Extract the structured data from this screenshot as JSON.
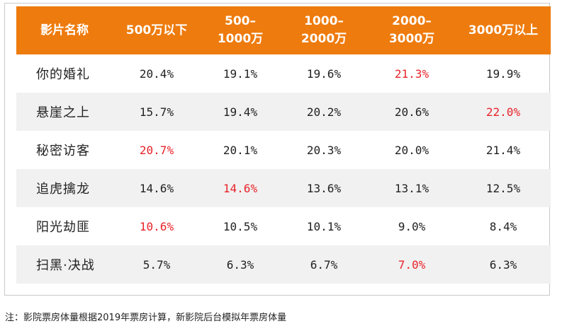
{
  "chart_data": {
    "type": "table",
    "columns": [
      "影片名称",
      "500万以下",
      "500–1000万",
      "1000–2000万",
      "2000–3000万",
      "3000万以上"
    ],
    "column_lines": [
      [
        "影片名称"
      ],
      [
        "500万以下"
      ],
      [
        "500–",
        "1000万"
      ],
      [
        "1000–",
        "2000万"
      ],
      [
        "2000–",
        "3000万"
      ],
      [
        "3000万以上"
      ]
    ],
    "rows": [
      {
        "name": "你的婚礼",
        "values": [
          "20.4%",
          "19.1%",
          "19.6%",
          "21.3%",
          "19.9%"
        ],
        "highlight_index": 3
      },
      {
        "name": "悬崖之上",
        "values": [
          "15.7%",
          "19.4%",
          "20.2%",
          "20.6%",
          "22.0%"
        ],
        "highlight_index": 4
      },
      {
        "name": "秘密访客",
        "values": [
          "20.7%",
          "20.1%",
          "20.3%",
          "20.0%",
          "21.4%"
        ],
        "highlight_index": 0
      },
      {
        "name": "追虎擒龙",
        "values": [
          "14.6%",
          "14.6%",
          "13.6%",
          "13.1%",
          "12.5%"
        ],
        "highlight_index": 1
      },
      {
        "name": "阳光劫匪",
        "values": [
          "10.6%",
          "10.5%",
          "10.1%",
          "9.0%",
          "8.4%"
        ],
        "highlight_index": 0
      },
      {
        "name": "扫黑·决战",
        "values": [
          "5.7%",
          "6.3%",
          "6.7%",
          "7.0%",
          "6.3%"
        ],
        "highlight_index": 3
      }
    ]
  },
  "footnote": "注：影院票房体量根据2019年票房计算，新影院后台模拟年票房体量",
  "colors": {
    "header_bg": "#ee7b0d",
    "header_text": "#ffffff",
    "stripe": "#f1f1f1",
    "highlight": "#e8232a"
  }
}
